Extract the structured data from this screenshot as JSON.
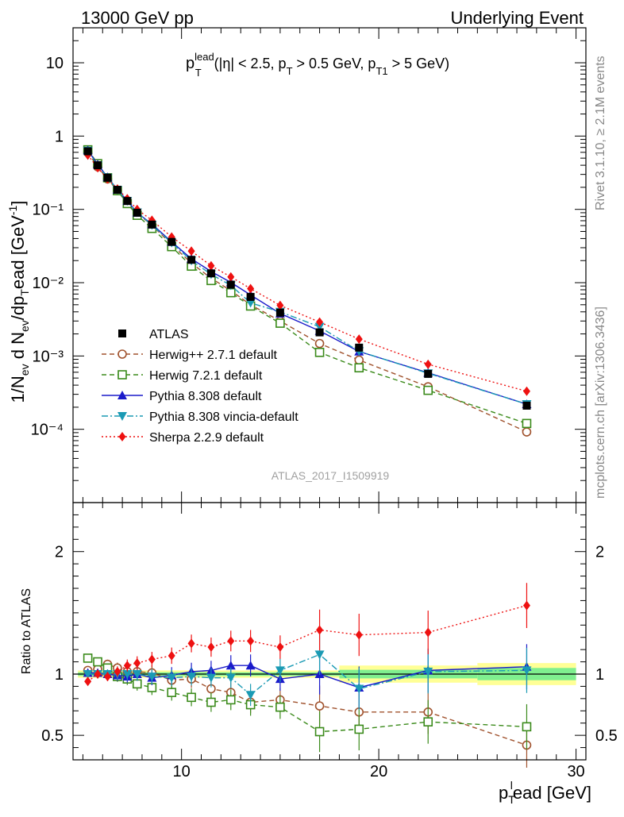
{
  "header": {
    "left": "13000 GeV pp",
    "right": "Underlying Event"
  },
  "side": {
    "rivet": "Rivet 3.1.10, ≥ 2.1M events",
    "mcplots": "mcplots.cern.ch [arXiv:1306.3436]"
  },
  "annotation": {
    "p": "p",
    "lead_sup": "lead",
    "T": "T",
    "cut1": "(|η| < 2.5, p",
    "cut1_sub": "T",
    "cut2": " > 0.5 GeV, p",
    "cut2_sub": "T1",
    "cut3": " > 5 GeV)"
  },
  "analysis_id": "ATLAS_2017_I1509919",
  "main_ylabel": {
    "a": "1/N",
    "ev1": "ev",
    "b": " d N",
    "ev2": "ev",
    "c": "/dp",
    "T": "T",
    "d": "ead [GeV",
    "sup": "-1",
    "e": "]"
  },
  "ratio_ylabel": "Ratio to ATLAS",
  "xlabel": {
    "p": "p",
    "T": "T",
    "l": "l",
    "rest": "ead [GeV]"
  },
  "colors": {
    "ATLAS": "#000000",
    "Herwigpp": "#a0522d",
    "Herwig7": "#3a8a1a",
    "Pythia": "#1a1aca",
    "Vincia": "#1a9ab4",
    "Sherpa": "#ee1111",
    "band_inner": "#7fef8f",
    "band_outer": "#ffff96"
  },
  "chart_data": {
    "type": "scatter",
    "x": [
      5.25,
      5.75,
      6.25,
      6.75,
      7.25,
      7.75,
      8.5,
      9.5,
      10.5,
      11.5,
      12.5,
      13.5,
      15,
      17,
      19,
      22.5,
      27.5
    ],
    "xlim": [
      4.5,
      30.5
    ],
    "ylim_main": [
      1e-05,
      30
    ],
    "ylog": true,
    "ylim_ratio": [
      0.3,
      2.4
    ],
    "x_ticks": [
      "10",
      "20",
      "30"
    ],
    "main_y_ticks": [
      "10",
      "1",
      "10⁻¹",
      "10⁻²",
      "10⁻³",
      "10⁻⁴"
    ],
    "ratio_y_ticks": [
      "0.5",
      "1",
      "2"
    ],
    "ref_band": [
      {
        "x0": 4.75,
        "x1": 18.0,
        "in": 0.015,
        "out": 0.03
      },
      {
        "x0": 18.0,
        "x1": 25.0,
        "in": 0.035,
        "out": 0.07
      },
      {
        "x0": 25.0,
        "x1": 30.0,
        "in": 0.05,
        "out": 0.09
      }
    ],
    "series": [
      {
        "name": "ATLAS",
        "key": "ATLAS",
        "marker": "square-filled",
        "line": "none",
        "values": [
          0.62,
          0.4,
          0.27,
          0.185,
          0.13,
          0.09,
          0.062,
          0.036,
          0.0205,
          0.0134,
          0.0094,
          0.0064,
          0.0039,
          0.0021,
          0.0013,
          0.00057,
          0.00021
        ],
        "ratio": [
          1,
          1,
          1,
          1,
          1,
          1,
          1,
          1,
          1,
          1,
          1,
          1,
          1,
          1,
          1,
          1,
          1
        ]
      },
      {
        "name": "Herwig++ 2.7.1 default",
        "key": "Herwigpp",
        "marker": "circle-open",
        "line": "dashed",
        "values": [
          0.6,
          0.38,
          0.26,
          0.18,
          0.125,
          0.088,
          0.061,
          0.033,
          0.0185,
          0.0115,
          0.0078,
          0.005,
          0.003,
          0.00148,
          0.00088,
          0.00038,
          9.2e-05
        ],
        "ratio": [
          1.03,
          1.04,
          1.08,
          1.05,
          1.02,
          1.02,
          1.01,
          0.95,
          0.96,
          0.88,
          0.85,
          0.77,
          0.79,
          0.74,
          0.69,
          0.69,
          0.42
        ]
      },
      {
        "name": "Herwig 7.2.1 default",
        "key": "Herwig7",
        "marker": "square-open",
        "line": "dashed",
        "values": [
          0.65,
          0.42,
          0.27,
          0.18,
          0.12,
          0.083,
          0.055,
          0.031,
          0.0168,
          0.0107,
          0.0073,
          0.0048,
          0.0028,
          0.00112,
          0.00069,
          0.00034,
          0.00012
        ],
        "ratio": [
          1.13,
          1.1,
          1.05,
          0.98,
          0.96,
          0.92,
          0.89,
          0.85,
          0.81,
          0.77,
          0.79,
          0.75,
          0.73,
          0.53,
          0.55,
          0.61,
          0.57
        ]
      },
      {
        "name": "Pythia 8.308 default",
        "key": "Pythia",
        "marker": "triangle-up",
        "line": "solid",
        "values": [
          0.64,
          0.41,
          0.275,
          0.186,
          0.131,
          0.09,
          0.063,
          0.036,
          0.0212,
          0.0142,
          0.0101,
          0.0068,
          0.0038,
          0.0022,
          0.00115,
          0.00059,
          0.00022
        ],
        "ratio": [
          1.01,
          1.01,
          1.0,
          0.99,
          0.98,
          1.0,
          0.97,
          0.99,
          1.02,
          1.03,
          1.07,
          1.07,
          0.96,
          1.0,
          0.89,
          1.03,
          1.06
        ]
      },
      {
        "name": "Pythia 8.308 vincia-default",
        "key": "Vincia",
        "marker": "triangle-down",
        "line": "dashdot",
        "values": [
          0.63,
          0.4,
          0.27,
          0.185,
          0.13,
          0.091,
          0.061,
          0.035,
          0.02,
          0.013,
          0.0092,
          0.0053,
          0.004,
          0.0025,
          0.00116,
          0.00058,
          0.00022
        ],
        "ratio": [
          1.0,
          1.0,
          1.0,
          1.0,
          1.0,
          1.0,
          0.98,
          0.97,
          0.98,
          0.97,
          0.97,
          0.83,
          1.03,
          1.16,
          0.88,
          1.02,
          1.03
        ]
      },
      {
        "name": "Sherpa 2.2.9 default",
        "key": "Sherpa",
        "marker": "diamond-filled",
        "line": "dotted",
        "values": [
          0.55,
          0.37,
          0.26,
          0.19,
          0.14,
          0.1,
          0.071,
          0.042,
          0.027,
          0.017,
          0.012,
          0.0083,
          0.0049,
          0.0029,
          0.0017,
          0.00077,
          0.00033
        ],
        "ratio": [
          0.94,
          1.0,
          0.98,
          1.02,
          1.07,
          1.09,
          1.12,
          1.15,
          1.25,
          1.22,
          1.27,
          1.27,
          1.22,
          1.36,
          1.32,
          1.34,
          1.56
        ]
      }
    ]
  }
}
